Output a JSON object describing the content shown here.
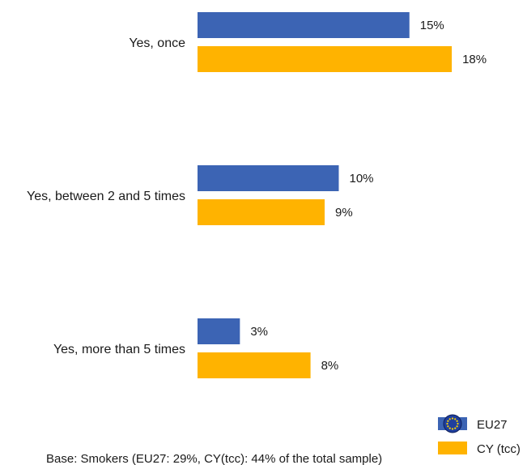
{
  "chart_data": {
    "type": "bar",
    "orientation": "horizontal",
    "categories": [
      "Yes, once",
      "Yes, between 2 and 5 times",
      "Yes, more than 5 times"
    ],
    "series": [
      {
        "name": "EU27",
        "values": [
          15,
          10,
          3
        ],
        "color": "#3c64b4"
      },
      {
        "name": "CY (tcc)",
        "values": [
          18,
          9,
          8
        ],
        "color": "#ffb300"
      }
    ],
    "value_labels": [
      [
        "15%",
        "10%",
        "3%"
      ],
      [
        "18%",
        "9%",
        "8%"
      ]
    ],
    "xlim": [
      0,
      18
    ],
    "grid": false,
    "legend": {
      "placement": "bottom-right",
      "icons": [
        "eu-flag-icon",
        "none"
      ]
    },
    "title": "",
    "xlabel": "",
    "ylabel": ""
  },
  "footnote": "Base: Smokers (EU27: 29%, CY(tcc): 44% of the total sample)"
}
